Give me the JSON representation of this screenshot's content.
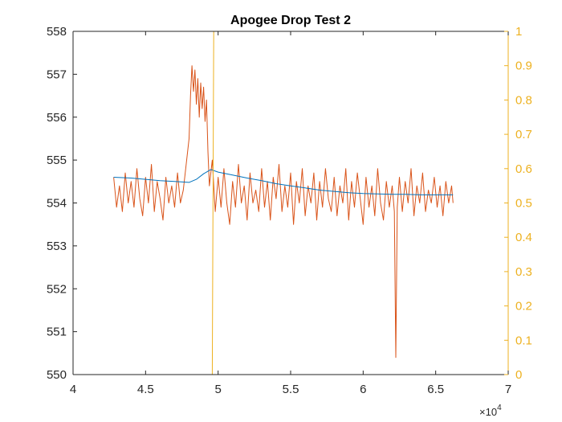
{
  "chart_data": {
    "type": "line",
    "title": "Apogee Drop Test 2",
    "xlabel": "",
    "ylabel_left": "",
    "ylabel_right": "",
    "x_exponent_label": "×10",
    "x_exponent_power": "4",
    "xlim": [
      40000,
      70000
    ],
    "ylim_left": [
      550,
      558
    ],
    "ylim_right": [
      0,
      1
    ],
    "x_ticks": [
      40000,
      45000,
      50000,
      55000,
      60000,
      65000,
      70000
    ],
    "x_tick_labels": [
      "4",
      "4.5",
      "5",
      "5.5",
      "6",
      "6.5",
      "7"
    ],
    "y_left_ticks": [
      550,
      551,
      552,
      553,
      554,
      555,
      556,
      557,
      558
    ],
    "y_left_tick_labels": [
      "550",
      "551",
      "552",
      "553",
      "554",
      "555",
      "556",
      "557",
      "558"
    ],
    "y_right_ticks": [
      0,
      0.1,
      0.2,
      0.3,
      0.4,
      0.5,
      0.6,
      0.7,
      0.8,
      0.9,
      1
    ],
    "y_right_tick_labels": [
      "0",
      "0.1",
      "0.2",
      "0.3",
      "0.4",
      "0.5",
      "0.6",
      "0.7",
      "0.8",
      "0.9",
      "1"
    ],
    "grid": false,
    "colors": {
      "raw": "#D95319",
      "smooth": "#0072BD",
      "state": "#EDB120",
      "axis": "#262626"
    },
    "series": [
      {
        "axis": "left",
        "color": "#D95319",
        "values_xy": [
          [
            42800,
            554.6
          ],
          [
            43000,
            553.9
          ],
          [
            43200,
            554.4
          ],
          [
            43400,
            553.8
          ],
          [
            43600,
            554.7
          ],
          [
            43800,
            554.0
          ],
          [
            44000,
            554.5
          ],
          [
            44200,
            553.9
          ],
          [
            44400,
            554.8
          ],
          [
            44600,
            554.1
          ],
          [
            44800,
            553.7
          ],
          [
            45000,
            554.6
          ],
          [
            45200,
            554.0
          ],
          [
            45400,
            554.9
          ],
          [
            45600,
            553.8
          ],
          [
            45800,
            554.5
          ],
          [
            46000,
            554.1
          ],
          [
            46200,
            553.6
          ],
          [
            46400,
            554.6
          ],
          [
            46600,
            554.0
          ],
          [
            46800,
            554.4
          ],
          [
            47000,
            553.9
          ],
          [
            47200,
            554.7
          ],
          [
            47400,
            554.0
          ],
          [
            47600,
            554.3
          ],
          [
            47800,
            554.9
          ],
          [
            48000,
            555.5
          ],
          [
            48100,
            556.5
          ],
          [
            48200,
            557.2
          ],
          [
            48300,
            556.6
          ],
          [
            48400,
            557.1
          ],
          [
            48500,
            556.3
          ],
          [
            48600,
            556.9
          ],
          [
            48700,
            556.0
          ],
          [
            48800,
            556.8
          ],
          [
            48900,
            556.2
          ],
          [
            49000,
            556.7
          ],
          [
            49100,
            555.9
          ],
          [
            49200,
            556.4
          ],
          [
            49300,
            555.2
          ],
          [
            49400,
            554.4
          ],
          [
            49600,
            555.0
          ],
          [
            49800,
            553.8
          ],
          [
            50000,
            554.6
          ],
          [
            50200,
            553.9
          ],
          [
            50400,
            554.8
          ],
          [
            50600,
            554.0
          ],
          [
            50800,
            553.5
          ],
          [
            51000,
            554.5
          ],
          [
            51200,
            553.9
          ],
          [
            51400,
            554.9
          ],
          [
            51600,
            554.0
          ],
          [
            51800,
            554.4
          ],
          [
            52000,
            553.6
          ],
          [
            52200,
            554.7
          ],
          [
            52400,
            554.0
          ],
          [
            52600,
            554.3
          ],
          [
            52800,
            553.8
          ],
          [
            53000,
            554.8
          ],
          [
            53200,
            553.9
          ],
          [
            53400,
            554.5
          ],
          [
            53600,
            553.6
          ],
          [
            53800,
            554.6
          ],
          [
            54000,
            554.1
          ],
          [
            54200,
            554.9
          ],
          [
            54400,
            553.8
          ],
          [
            54600,
            554.4
          ],
          [
            54800,
            553.9
          ],
          [
            55000,
            554.7
          ],
          [
            55200,
            553.5
          ],
          [
            55400,
            554.5
          ],
          [
            55600,
            554.0
          ],
          [
            55800,
            554.8
          ],
          [
            56000,
            553.7
          ],
          [
            56200,
            554.4
          ],
          [
            56400,
            554.0
          ],
          [
            56600,
            554.7
          ],
          [
            56800,
            553.6
          ],
          [
            57000,
            554.5
          ],
          [
            57200,
            553.9
          ],
          [
            57400,
            554.8
          ],
          [
            57600,
            554.1
          ],
          [
            57800,
            553.8
          ],
          [
            58000,
            554.6
          ],
          [
            58200,
            553.7
          ],
          [
            58400,
            554.4
          ],
          [
            58600,
            554.0
          ],
          [
            58800,
            554.8
          ],
          [
            59000,
            553.6
          ],
          [
            59200,
            554.5
          ],
          [
            59400,
            553.9
          ],
          [
            59600,
            554.7
          ],
          [
            59800,
            554.1
          ],
          [
            60000,
            553.5
          ],
          [
            60200,
            554.6
          ],
          [
            60400,
            553.9
          ],
          [
            60600,
            554.4
          ],
          [
            60800,
            553.7
          ],
          [
            61000,
            554.8
          ],
          [
            61200,
            554.0
          ],
          [
            61400,
            553.6
          ],
          [
            61600,
            554.5
          ],
          [
            61800,
            553.9
          ],
          [
            62000,
            554.4
          ],
          [
            62150,
            553.8
          ],
          [
            62250,
            550.4
          ],
          [
            62350,
            553.9
          ],
          [
            62500,
            554.6
          ],
          [
            62700,
            553.8
          ],
          [
            62900,
            554.5
          ],
          [
            63100,
            554.0
          ],
          [
            63300,
            554.8
          ],
          [
            63500,
            553.7
          ],
          [
            63700,
            554.4
          ],
          [
            63900,
            554.0
          ],
          [
            64100,
            554.7
          ],
          [
            64300,
            553.8
          ],
          [
            64500,
            554.3
          ],
          [
            64700,
            554.0
          ],
          [
            64900,
            554.6
          ],
          [
            65100,
            553.9
          ],
          [
            65300,
            554.4
          ],
          [
            65500,
            553.7
          ],
          [
            65700,
            554.5
          ],
          [
            65900,
            554.0
          ],
          [
            66100,
            554.4
          ],
          [
            66200,
            554.0
          ]
        ]
      },
      {
        "axis": "left",
        "color": "#0072BD",
        "values_xy": [
          [
            42800,
            554.6
          ],
          [
            44000,
            554.58
          ],
          [
            45000,
            554.55
          ],
          [
            46000,
            554.52
          ],
          [
            47000,
            554.5
          ],
          [
            48000,
            554.48
          ],
          [
            48500,
            554.55
          ],
          [
            49000,
            554.68
          ],
          [
            49500,
            554.78
          ],
          [
            50000,
            554.72
          ],
          [
            51000,
            554.65
          ],
          [
            52000,
            554.58
          ],
          [
            53000,
            554.52
          ],
          [
            54000,
            554.45
          ],
          [
            55000,
            554.4
          ],
          [
            56000,
            554.35
          ],
          [
            57000,
            554.3
          ],
          [
            58000,
            554.27
          ],
          [
            59000,
            554.24
          ],
          [
            60000,
            554.22
          ],
          [
            61000,
            554.21
          ],
          [
            62000,
            554.2
          ],
          [
            63000,
            554.2
          ],
          [
            64000,
            554.19
          ],
          [
            65000,
            554.19
          ],
          [
            66200,
            554.19
          ]
        ]
      },
      {
        "axis": "right",
        "color": "#EDB120",
        "values_xy": [
          [
            42800,
            0
          ],
          [
            49600,
            0
          ],
          [
            49700,
            1
          ],
          [
            66200,
            1
          ]
        ]
      }
    ]
  }
}
